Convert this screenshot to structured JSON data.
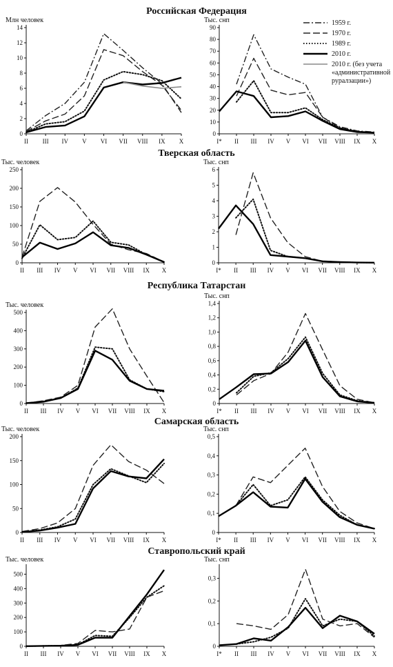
{
  "figure": {
    "legend": [
      {
        "label": "1959 г.",
        "style": "dashdot"
      },
      {
        "label": "1970 г.",
        "style": "dashed"
      },
      {
        "label": "1989 г.",
        "style": "dotted"
      },
      {
        "label": "2010 г.",
        "style": "solid"
      },
      {
        "label": "2010 г. (без учета «административной руралзации»)",
        "style": "gray",
        "lines": [
          "2010 г. (без учета",
          "«административной",
          "руралзации»)"
        ]
      }
    ]
  },
  "chart_data": [
    {
      "type": "line",
      "region": "Российская Федерация",
      "side": "left",
      "unit_label": "Млн человек",
      "categories": [
        "II",
        "III",
        "IV",
        "V",
        "VI",
        "VII",
        "VIII",
        "IX",
        "X"
      ],
      "ylim": [
        0,
        14
      ],
      "yticks": [
        0,
        2,
        4,
        6,
        8,
        10,
        12,
        14
      ],
      "series": [
        {
          "name": "1959 г.",
          "style": "dashdot",
          "values": [
            0.4,
            2.4,
            4.0,
            6.8,
            13.2,
            11.0,
            8.7,
            6.6,
            2.8
          ]
        },
        {
          "name": "1970 г.",
          "style": "dashed",
          "values": [
            0.3,
            1.7,
            2.6,
            5.0,
            11.1,
            10.3,
            8.2,
            6.4,
            3.1
          ]
        },
        {
          "name": "1989 г.",
          "style": "dotted",
          "values": [
            0.2,
            1.3,
            1.6,
            3.0,
            7.1,
            8.2,
            7.8,
            7.0,
            4.6
          ]
        },
        {
          "name": "2010 г.",
          "style": "solid",
          "values": [
            0.2,
            0.9,
            1.1,
            2.3,
            6.1,
            6.8,
            6.5,
            6.7,
            7.4
          ]
        },
        {
          "name": "2010 г. (без учета «административной руралзации»)",
          "style": "gray",
          "values": [
            null,
            null,
            null,
            null,
            null,
            6.8,
            6.3,
            6.0,
            6.2
          ]
        }
      ]
    },
    {
      "type": "line",
      "region": "Российская Федерация",
      "side": "right",
      "unit_label": "Тыс. снп",
      "categories": [
        "I*",
        "II",
        "III",
        "IV",
        "V",
        "VI",
        "VII",
        "VIII",
        "IX",
        "X"
      ],
      "ylim": [
        0,
        90
      ],
      "yticks": [
        0,
        10,
        20,
        30,
        40,
        50,
        60,
        70,
        80,
        90
      ],
      "series": [
        {
          "name": "1959 г.",
          "style": "dashdot",
          "values": [
            null,
            42,
            84,
            55,
            48,
            42,
            14,
            6,
            2.5,
            1.5
          ]
        },
        {
          "name": "1970 г.",
          "style": "dashed",
          "values": [
            null,
            32,
            64,
            37,
            33,
            35,
            14,
            5,
            2,
            1
          ]
        },
        {
          "name": "1989 г.",
          "style": "dotted",
          "values": [
            null,
            27,
            45,
            18,
            18,
            22,
            12,
            5,
            2,
            1
          ]
        },
        {
          "name": "2010 г.",
          "style": "solid",
          "values": [
            19,
            36,
            32,
            14,
            15,
            19,
            11,
            4,
            1.5,
            1
          ]
        }
      ]
    },
    {
      "type": "line",
      "region": "Тверская область",
      "side": "left",
      "unit_label": "Тыс. человек",
      "categories": [
        "II",
        "III",
        "IV",
        "V",
        "VI",
        "VII",
        "VIII",
        "IX",
        "X"
      ],
      "ylim": [
        0,
        250
      ],
      "yticks": [
        0,
        50,
        100,
        150,
        200,
        250
      ],
      "series": [
        {
          "name": "1970 г.",
          "style": "dashed",
          "values": [
            15,
            165,
            202,
            163,
            103,
            50,
            35,
            25,
            2
          ]
        },
        {
          "name": "1989 г.",
          "style": "dotted",
          "values": [
            12,
            102,
            62,
            68,
            112,
            55,
            48,
            22,
            2
          ]
        },
        {
          "name": "2010 г.",
          "style": "solid",
          "values": [
            15,
            54,
            37,
            52,
            82,
            47,
            40,
            22,
            2
          ]
        }
      ]
    },
    {
      "type": "line",
      "region": "Тверская область",
      "side": "right",
      "unit_label": "Тыс. снп",
      "categories": [
        "I*",
        "II",
        "III",
        "IV",
        "V",
        "VI",
        "VII",
        "VIII",
        "IX",
        "X"
      ],
      "ylim": [
        0,
        6
      ],
      "yticks": [
        0,
        1,
        2,
        3,
        4,
        5,
        6
      ],
      "series": [
        {
          "name": "1970 г.",
          "style": "dashed",
          "values": [
            null,
            1.8,
            5.8,
            2.9,
            1.3,
            0.4,
            0.1,
            0.05,
            0.02,
            0.01
          ]
        },
        {
          "name": "1989 г.",
          "style": "dotted",
          "values": [
            null,
            2.9,
            4.1,
            0.8,
            0.4,
            0.3,
            0.1,
            0.05,
            0.02,
            0.01
          ]
        },
        {
          "name": "2010 г.",
          "style": "solid",
          "values": [
            2.2,
            3.7,
            2.5,
            0.5,
            0.4,
            0.3,
            0.1,
            0.05,
            0.02,
            0.01
          ]
        }
      ]
    },
    {
      "type": "line",
      "region": "Республика Татарстан",
      "side": "left",
      "unit_label": "Тыс. человек",
      "categories": [
        "II",
        "III",
        "IV",
        "V",
        "VI",
        "VII",
        "VIII",
        "IX",
        "X"
      ],
      "ylim": [
        0,
        500
      ],
      "yticks": [
        0,
        100,
        200,
        300,
        400,
        500
      ],
      "series": [
        {
          "name": "1970 г.",
          "style": "dashed",
          "values": [
            2,
            15,
            35,
            100,
            420,
            520,
            300,
            150,
            5
          ]
        },
        {
          "name": "1989 г.",
          "style": "dotted",
          "values": [
            2,
            12,
            30,
            85,
            310,
            300,
            130,
            80,
            65
          ]
        },
        {
          "name": "2010 г.",
          "style": "solid",
          "values": [
            2,
            10,
            30,
            80,
            290,
            240,
            125,
            80,
            70
          ]
        }
      ]
    },
    {
      "type": "line",
      "region": "Республика Татарстан",
      "side": "right",
      "unit_label": "Тыс. снп",
      "categories": [
        "I*",
        "II",
        "III",
        "IV",
        "V",
        "VI",
        "VII",
        "VIII",
        "IX",
        "X"
      ],
      "ylim": [
        0,
        1.4
      ],
      "yticks": [
        "0",
        "0,2",
        "0,4",
        "0,6",
        "0,8",
        "1,0",
        "1,2",
        "1,4"
      ],
      "series": [
        {
          "name": "1970 г.",
          "style": "dashed",
          "values": [
            null,
            0.12,
            0.32,
            0.42,
            0.72,
            1.26,
            0.75,
            0.25,
            0.06,
            0.01
          ]
        },
        {
          "name": "1989 г.",
          "style": "dotted",
          "values": [
            null,
            0.15,
            0.38,
            0.43,
            0.63,
            0.93,
            0.42,
            0.12,
            0.04,
            0.01
          ]
        },
        {
          "name": "2010 г.",
          "style": "solid",
          "values": [
            0.06,
            0.23,
            0.41,
            0.42,
            0.58,
            0.88,
            0.37,
            0.1,
            0.03,
            0.01
          ]
        }
      ]
    },
    {
      "type": "line",
      "region": "Самарская область",
      "side": "left",
      "unit_label": "Тыс. человек",
      "categories": [
        "II",
        "III",
        "IV",
        "V",
        "VI",
        "VII",
        "VIII",
        "IX",
        "X"
      ],
      "ylim": [
        0,
        200
      ],
      "yticks": [
        0,
        50,
        100,
        150,
        200
      ],
      "series": [
        {
          "name": "1970 г.",
          "style": "dashed",
          "values": [
            2,
            8,
            20,
            50,
            140,
            183,
            148,
            130,
            102
          ]
        },
        {
          "name": "1989 г.",
          "style": "dotted",
          "values": [
            1,
            5,
            12,
            28,
            100,
            133,
            118,
            104,
            144
          ]
        },
        {
          "name": "2010 г.",
          "style": "solid",
          "values": [
            1,
            4,
            10,
            18,
            92,
            128,
            117,
            113,
            153
          ]
        }
      ]
    },
    {
      "type": "line",
      "region": "Самарская область",
      "side": "right",
      "unit_label": "Тыс. снп",
      "categories": [
        "I*",
        "II",
        "III",
        "IV",
        "V",
        "VI",
        "VII",
        "VIII",
        "IX",
        "X"
      ],
      "ylim": [
        0,
        0.5
      ],
      "yticks": [
        "0",
        "0,1",
        "0,2",
        "0,3",
        "0,4",
        "0,5"
      ],
      "series": [
        {
          "name": "1970 г.",
          "style": "dashed",
          "values": [
            null,
            0.14,
            0.29,
            0.26,
            0.35,
            0.44,
            0.24,
            0.11,
            0.05,
            0.02
          ]
        },
        {
          "name": "1989 г.",
          "style": "dotted",
          "values": [
            null,
            0.14,
            0.25,
            0.14,
            0.17,
            0.29,
            0.17,
            0.09,
            0.04,
            0.02
          ]
        },
        {
          "name": "2010 г.",
          "style": "solid",
          "values": [
            0.085,
            0.14,
            0.21,
            0.135,
            0.13,
            0.28,
            0.16,
            0.08,
            0.04,
            0.02
          ]
        }
      ]
    },
    {
      "type": "line",
      "region": "Ставропольский край",
      "side": "left",
      "unit_label": "Тыс. человек",
      "categories": [
        "II",
        "III",
        "IV",
        "V",
        "VI",
        "VII",
        "VIII",
        "IX",
        "X"
      ],
      "ylim": [
        0,
        550
      ],
      "yticks": [
        0,
        100,
        200,
        300,
        400,
        500
      ],
      "series": [
        {
          "name": "1970 г.",
          "style": "dashed",
          "values": [
            1,
            4,
            6,
            20,
            110,
            100,
            120,
            340,
            385
          ]
        },
        {
          "name": "1989 г.",
          "style": "dotted",
          "values": [
            1,
            3,
            5,
            12,
            75,
            70,
            200,
            340,
            420
          ]
        },
        {
          "name": "2010 г.",
          "style": "solid",
          "values": [
            1,
            3,
            4,
            10,
            60,
            60,
            210,
            360,
            530
          ]
        }
      ]
    },
    {
      "type": "line",
      "region": "Ставропольский край",
      "side": "right",
      "unit_label": "Тыс. снп",
      "categories": [
        "I*",
        "II",
        "III",
        "IV",
        "V",
        "VI",
        "VII",
        "VIII",
        "IX",
        "X"
      ],
      "ylim": [
        0,
        0.35
      ],
      "yticks": [
        "0",
        "0,1",
        "0,2",
        "0,3"
      ],
      "series": [
        {
          "name": "1970 г.",
          "style": "dashed",
          "values": [
            null,
            0.1,
            0.09,
            0.075,
            0.14,
            0.34,
            0.12,
            0.09,
            0.1,
            0.04
          ]
        },
        {
          "name": "1989 г.",
          "style": "dotted",
          "values": [
            null,
            0.01,
            0.02,
            0.04,
            0.08,
            0.21,
            0.09,
            0.12,
            0.11,
            0.045
          ]
        },
        {
          "name": "2010 г.",
          "style": "solid",
          "values": [
            0.005,
            0.01,
            0.035,
            0.025,
            0.085,
            0.17,
            0.08,
            0.135,
            0.11,
            0.055
          ]
        }
      ]
    }
  ]
}
